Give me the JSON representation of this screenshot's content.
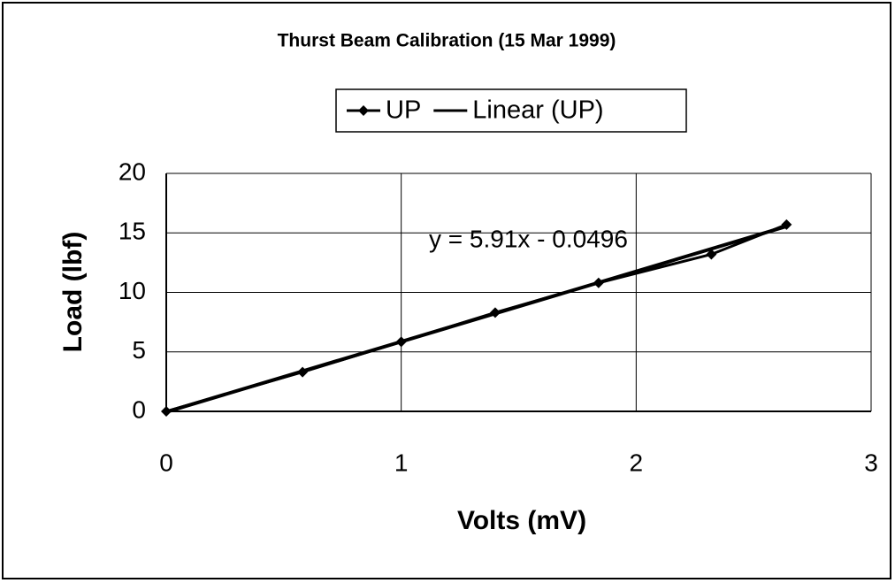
{
  "chart_data": {
    "type": "scatter",
    "title": "Thurst Beam Calibration (15 Mar 1999)",
    "x_label": "Volts (mV)",
    "y_label": "Load (lbf)",
    "annotation": "y = 5.91x - 0.0496",
    "xlim": [
      0,
      3
    ],
    "xticks": [
      0,
      1,
      2,
      3
    ],
    "ylim": [
      0,
      20
    ],
    "yticks": [
      0,
      5,
      10,
      15,
      20
    ],
    "grid": true,
    "legend": "top",
    "series": [
      {
        "name": "UP",
        "color": "#000000",
        "marker": "diamond",
        "x": [
          0,
          0.58,
          1.0,
          1.4,
          1.84,
          2.32,
          2.64
        ],
        "values": [
          0,
          3.3,
          5.85,
          8.3,
          10.8,
          13.2,
          15.7
        ]
      },
      {
        "name": "Linear (UP)",
        "color": "#000000",
        "x": [
          0,
          2.64
        ],
        "values": [
          -0.0496,
          15.55
        ]
      }
    ]
  }
}
